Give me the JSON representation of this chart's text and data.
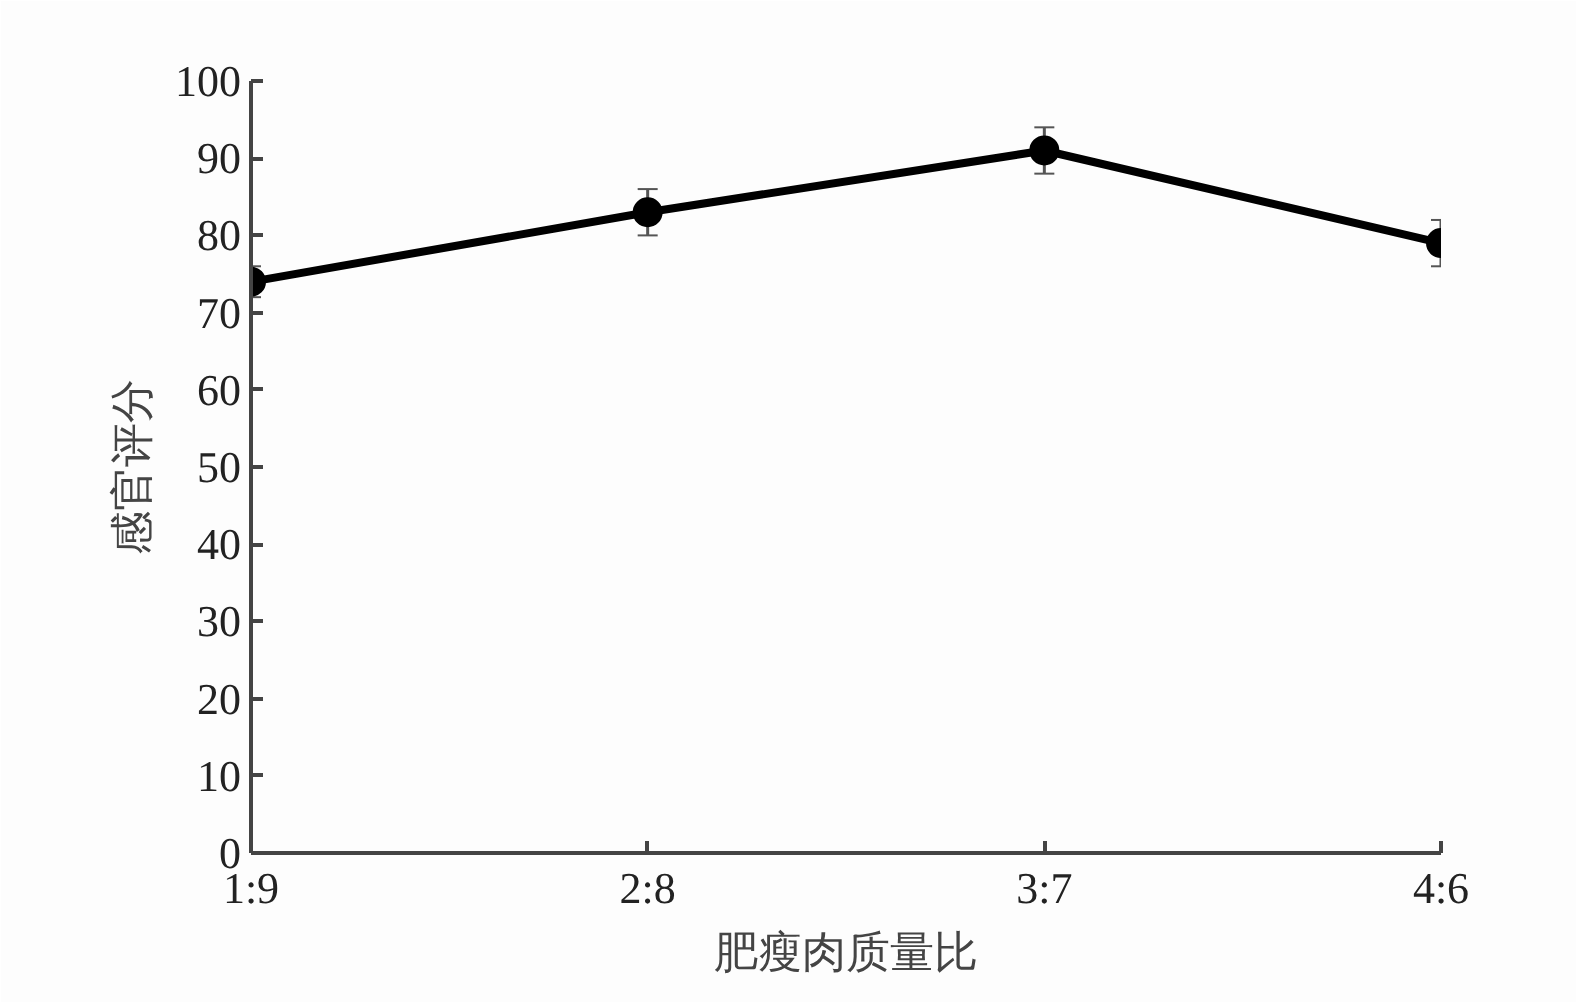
{
  "chart_data": {
    "type": "line",
    "xlabel": "肥瘦肉质量比",
    "ylabel": "感官评分",
    "categories": [
      "1:9",
      "2:8",
      "3:7",
      "4:6"
    ],
    "series": [
      {
        "color": "#000000",
        "values": [
          74,
          83,
          91,
          79
        ],
        "errors": [
          2,
          3,
          3,
          3
        ]
      }
    ],
    "ylim": [
      0,
      100
    ],
    "yticks": [
      0,
      10,
      20,
      30,
      40,
      50,
      60,
      70,
      80,
      90,
      100
    ],
    "grid": false,
    "marker": "circle",
    "line_style": "solid"
  }
}
